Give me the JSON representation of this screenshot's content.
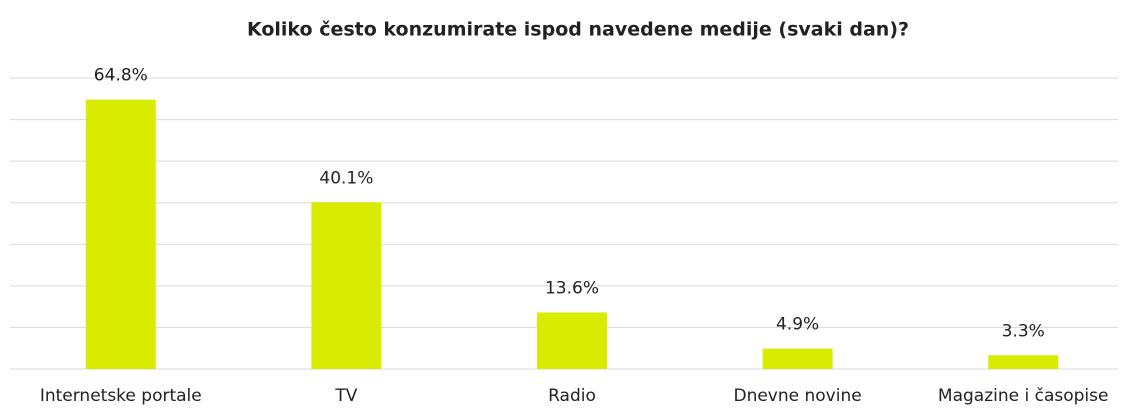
{
  "chart_data": {
    "type": "bar",
    "title": "Koliko često konzumirate ispod navedene medije (svaki dan)?",
    "categories": [
      "Internetske portale",
      "TV",
      "Radio",
      "Dnevne novine",
      "Magazine i časopise"
    ],
    "values": [
      64.8,
      40.1,
      13.6,
      4.9,
      3.3
    ],
    "value_labels": [
      "64.8%",
      "40.1%",
      "13.6%",
      "4.9%",
      "3.3%"
    ],
    "color": "#d9ec00",
    "ylim": [
      0,
      70
    ],
    "yticks": [
      0,
      10,
      20,
      30,
      40,
      50,
      60,
      70
    ],
    "grid": true
  }
}
